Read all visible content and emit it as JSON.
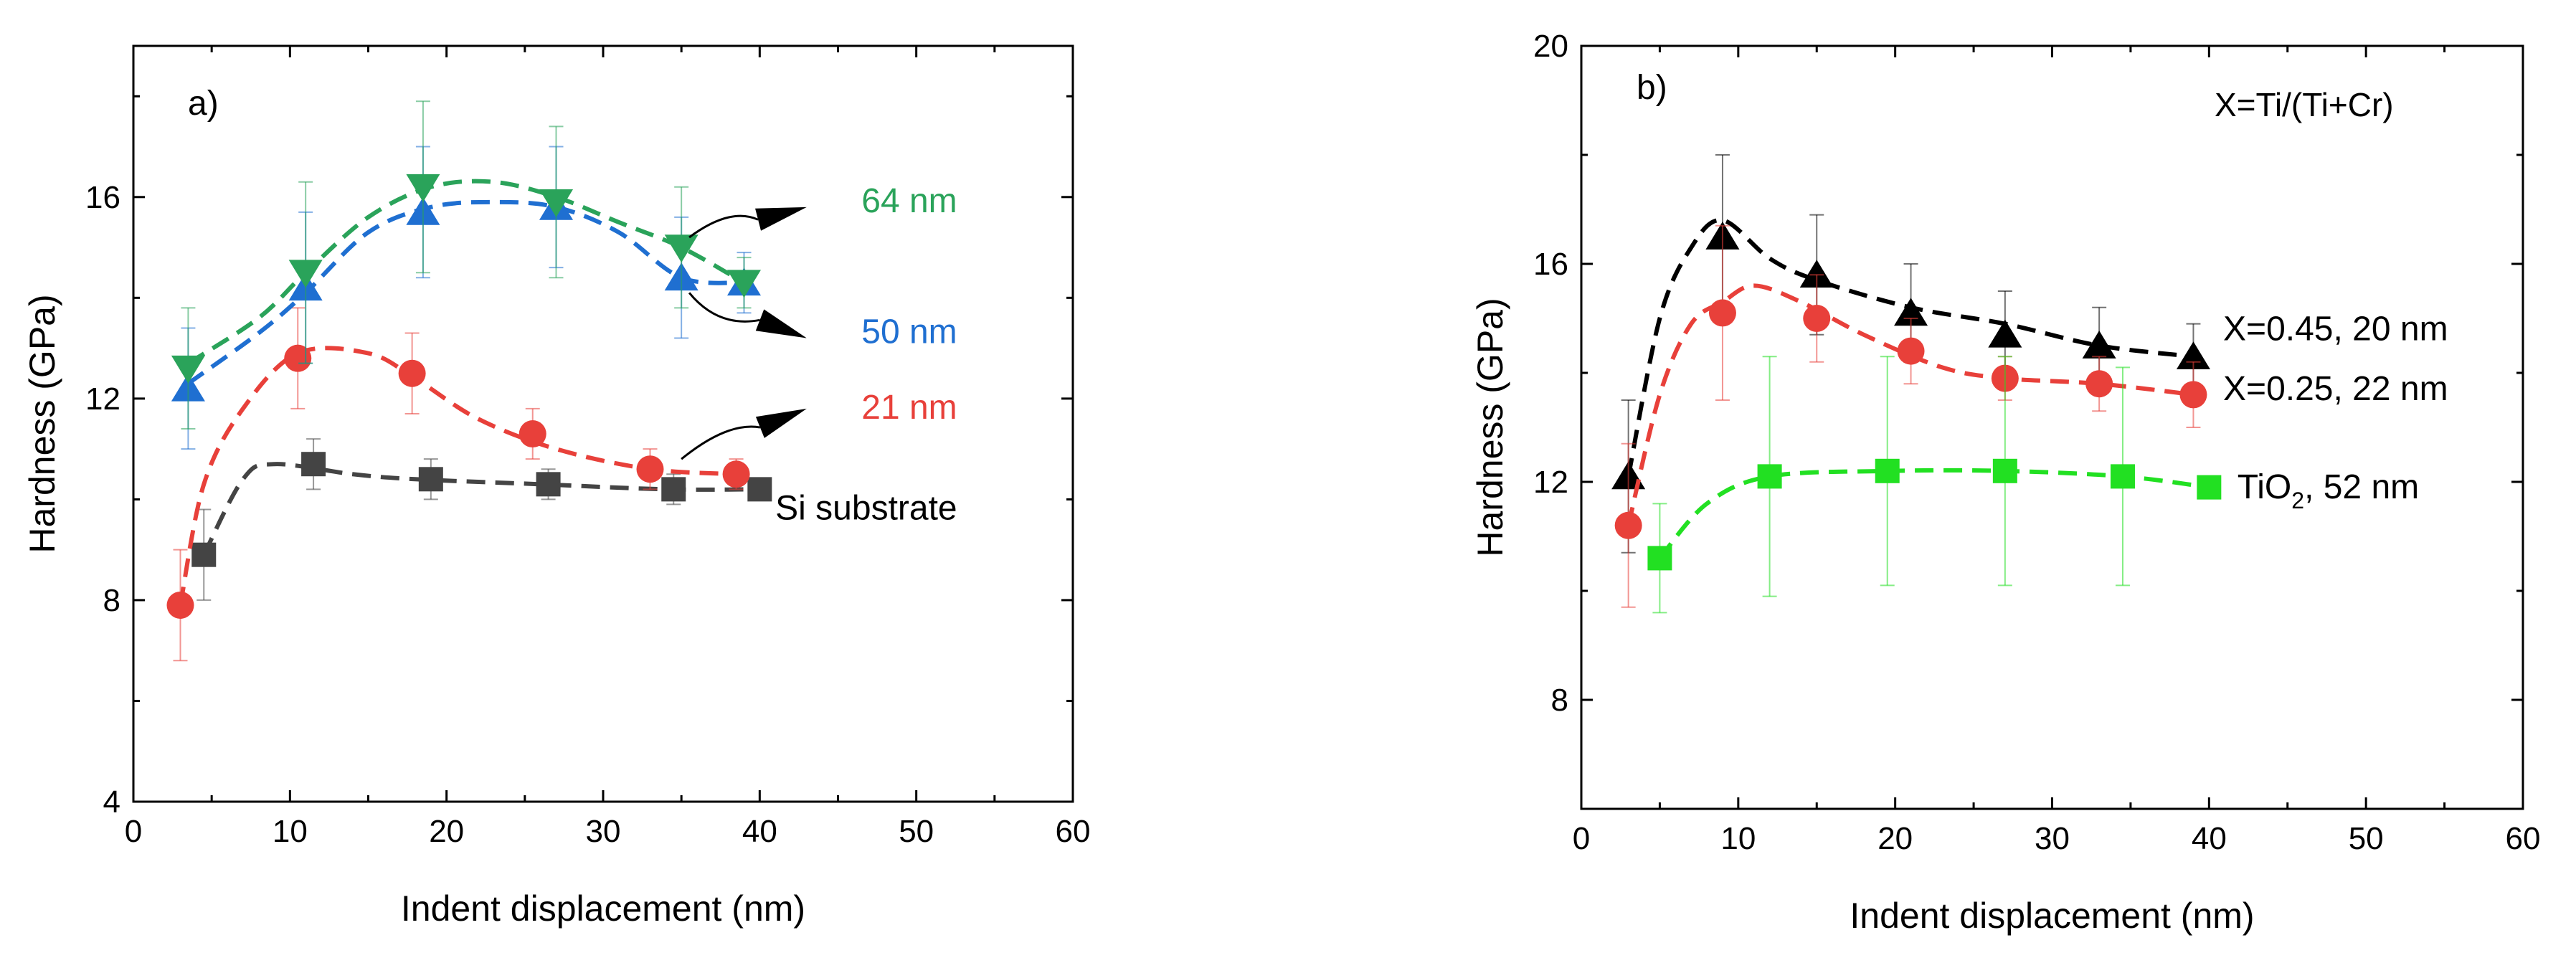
{
  "chart_data": [
    {
      "type": "scatter",
      "panel_label": "a)",
      "xlabel": "Indent displacement (nm)",
      "ylabel": "Hardness (GPa)",
      "xlim": [
        0,
        60
      ],
      "ylim": [
        4,
        19
      ],
      "xticks": [
        0,
        10,
        20,
        30,
        40,
        50,
        60
      ],
      "yticks": [
        4,
        8,
        12,
        16
      ],
      "series": [
        {
          "name": "Si substrate",
          "color": "#444444",
          "marker": "square",
          "points": [
            [
              4.5,
              8.9,
              0.9
            ],
            [
              11.5,
              10.7,
              0.5
            ],
            [
              19,
              10.4,
              0.4
            ],
            [
              26.5,
              10.3,
              0.3
            ],
            [
              34.5,
              10.2,
              0.3
            ],
            [
              40,
              10.2,
              0.2
            ]
          ],
          "trend": [
            [
              4.5,
              8.9
            ],
            [
              7,
              10.4
            ],
            [
              9,
              10.7
            ],
            [
              14,
              10.5
            ],
            [
              18,
              10.4
            ],
            [
              26,
              10.3
            ],
            [
              34,
              10.2
            ],
            [
              40,
              10.2
            ]
          ]
        },
        {
          "name": "21 nm",
          "color": "#e8403a",
          "marker": "circle",
          "points": [
            [
              3,
              7.9,
              1.1
            ],
            [
              10.5,
              12.8,
              1.0
            ],
            [
              17.8,
              12.5,
              0.8
            ],
            [
              25.5,
              11.3,
              0.5
            ],
            [
              33,
              10.6,
              0.4
            ],
            [
              38.5,
              10.5,
              0.3
            ]
          ],
          "trend": [
            [
              3,
              7.9
            ],
            [
              4.5,
              10.3
            ],
            [
              7,
              11.8
            ],
            [
              10.5,
              12.9
            ],
            [
              15,
              12.9
            ],
            [
              18,
              12.4
            ],
            [
              22,
              11.6
            ],
            [
              27,
              11.0
            ],
            [
              33,
              10.6
            ],
            [
              38.5,
              10.5
            ]
          ]
        },
        {
          "name": "50 nm",
          "color": "#1f6fd1",
          "marker": "triangle-up",
          "points": [
            [
              3.5,
              12.2,
              1.2
            ],
            [
              11,
              14.2,
              1.5
            ],
            [
              18.5,
              15.7,
              1.3
            ],
            [
              27,
              15.8,
              1.2
            ],
            [
              35,
              14.4,
              1.2
            ],
            [
              39,
              14.3,
              0.6
            ]
          ],
          "trend": [
            [
              3.5,
              12.3
            ],
            [
              8,
              13.3
            ],
            [
              11,
              14.1
            ],
            [
              15,
              15.3
            ],
            [
              19,
              15.8
            ],
            [
              23,
              15.9
            ],
            [
              27,
              15.8
            ],
            [
              31,
              15.3
            ],
            [
              35,
              14.4
            ],
            [
              39,
              14.3
            ]
          ]
        },
        {
          "name": "64 nm",
          "color": "#2aa35a",
          "marker": "triangle-down",
          "points": [
            [
              3.5,
              12.6,
              1.2
            ],
            [
              11,
              14.5,
              1.8
            ],
            [
              18.5,
              16.2,
              1.7
            ],
            [
              27,
              15.9,
              1.5
            ],
            [
              35,
              15.0,
              1.2
            ],
            [
              39,
              14.3,
              0.5
            ]
          ],
          "trend": [
            [
              3.5,
              12.7
            ],
            [
              8,
              13.6
            ],
            [
              11,
              14.5
            ],
            [
              15,
              15.6
            ],
            [
              19,
              16.2
            ],
            [
              23,
              16.3
            ],
            [
              27,
              16.0
            ],
            [
              31,
              15.5
            ],
            [
              35,
              15.0
            ],
            [
              39,
              14.3
            ]
          ]
        }
      ],
      "annotations": [
        {
          "text": "64 nm",
          "color": "#2aa35a",
          "x": 46.5,
          "y": 15.7,
          "arrow_from": [
            35.5,
            15.2
          ],
          "arrow_to": [
            43,
            15.8
          ]
        },
        {
          "text": "50 nm",
          "color": "#1f6fd1",
          "x": 46.5,
          "y": 13.1,
          "arrow_from": [
            35.5,
            14.1
          ],
          "arrow_to": [
            43,
            13.2
          ]
        },
        {
          "text": "21 nm",
          "color": "#e8403a",
          "x": 46.5,
          "y": 11.6,
          "arrow_from": [
            35,
            10.8
          ],
          "arrow_to": [
            43,
            11.8
          ]
        },
        {
          "text": "Si substrate",
          "color": "#000000",
          "x": 41,
          "y": 9.6
        }
      ]
    },
    {
      "type": "scatter",
      "panel_label": "b)",
      "legend_title": "X=Ti/(Ti+Cr)",
      "xlabel": "Indent displacement (nm)",
      "ylabel": "Hardness (GPa)",
      "xlim": [
        0,
        60
      ],
      "ylim": [
        6,
        20
      ],
      "xticks": [
        0,
        10,
        20,
        30,
        40,
        50,
        60
      ],
      "yticks": [
        8,
        12,
        16,
        20
      ],
      "series": [
        {
          "name": "X=0.45, 20 nm",
          "color": "#000000",
          "marker": "triangle-up",
          "points": [
            [
              3,
              12.1,
              1.4
            ],
            [
              9,
              16.5,
              1.5
            ],
            [
              15,
              15.8,
              1.1
            ],
            [
              21,
              15.1,
              0.9
            ],
            [
              27,
              14.7,
              0.8
            ],
            [
              33,
              14.5,
              0.7
            ],
            [
              39,
              14.3,
              0.6
            ]
          ],
          "trend": [
            [
              3,
              12.1
            ],
            [
              5,
              15.0
            ],
            [
              7,
              16.3
            ],
            [
              9,
              16.8
            ],
            [
              12,
              16.1
            ],
            [
              15,
              15.7
            ],
            [
              21,
              15.2
            ],
            [
              27,
              14.9
            ],
            [
              33,
              14.5
            ],
            [
              39,
              14.3
            ]
          ]
        },
        {
          "name": "X=0.25, 22 nm",
          "color": "#e8403a",
          "marker": "circle",
          "points": [
            [
              3,
              11.2,
              1.5
            ],
            [
              9,
              15.1,
              1.6
            ],
            [
              15,
              15.0,
              0.8
            ],
            [
              21,
              14.4,
              0.6
            ],
            [
              27,
              13.9,
              0.4
            ],
            [
              33,
              13.8,
              0.5
            ],
            [
              39,
              13.6,
              0.6
            ]
          ],
          "trend": [
            [
              3,
              11.2
            ],
            [
              5,
              13.6
            ],
            [
              7,
              14.9
            ],
            [
              9,
              15.3
            ],
            [
              11,
              15.6
            ],
            [
              14,
              15.3
            ],
            [
              18,
              14.7
            ],
            [
              23,
              14.1
            ],
            [
              27,
              13.9
            ],
            [
              33,
              13.8
            ],
            [
              39,
              13.6
            ]
          ]
        },
        {
          "name": "TiO2, 52 nm",
          "color": "#22e022",
          "marker": "square",
          "points": [
            [
              5,
              10.6,
              1.0
            ],
            [
              12,
              12.1,
              2.2
            ],
            [
              19.5,
              12.2,
              2.1
            ],
            [
              27,
              12.2,
              2.1
            ],
            [
              34.5,
              12.1,
              2.0
            ],
            [
              40,
              11.9,
              0.2
            ]
          ],
          "trend": [
            [
              5,
              10.6
            ],
            [
              8,
              11.6
            ],
            [
              12,
              12.1
            ],
            [
              19.5,
              12.2
            ],
            [
              27,
              12.2
            ],
            [
              34.5,
              12.1
            ],
            [
              40,
              11.9
            ]
          ]
        }
      ],
      "annotations": [
        {
          "text": "X=0.45, 20 nm",
          "color": "#000000",
          "x": 40.9,
          "y": 14.6
        },
        {
          "text": "X=0.25, 22 nm",
          "color": "#000000",
          "x": 40.9,
          "y": 13.5
        },
        {
          "text_main": "TiO",
          "text_sub": "2",
          "text_tail": ", 52 nm",
          "color": "#000000",
          "x": 41.8,
          "y": 11.7
        }
      ]
    }
  ]
}
